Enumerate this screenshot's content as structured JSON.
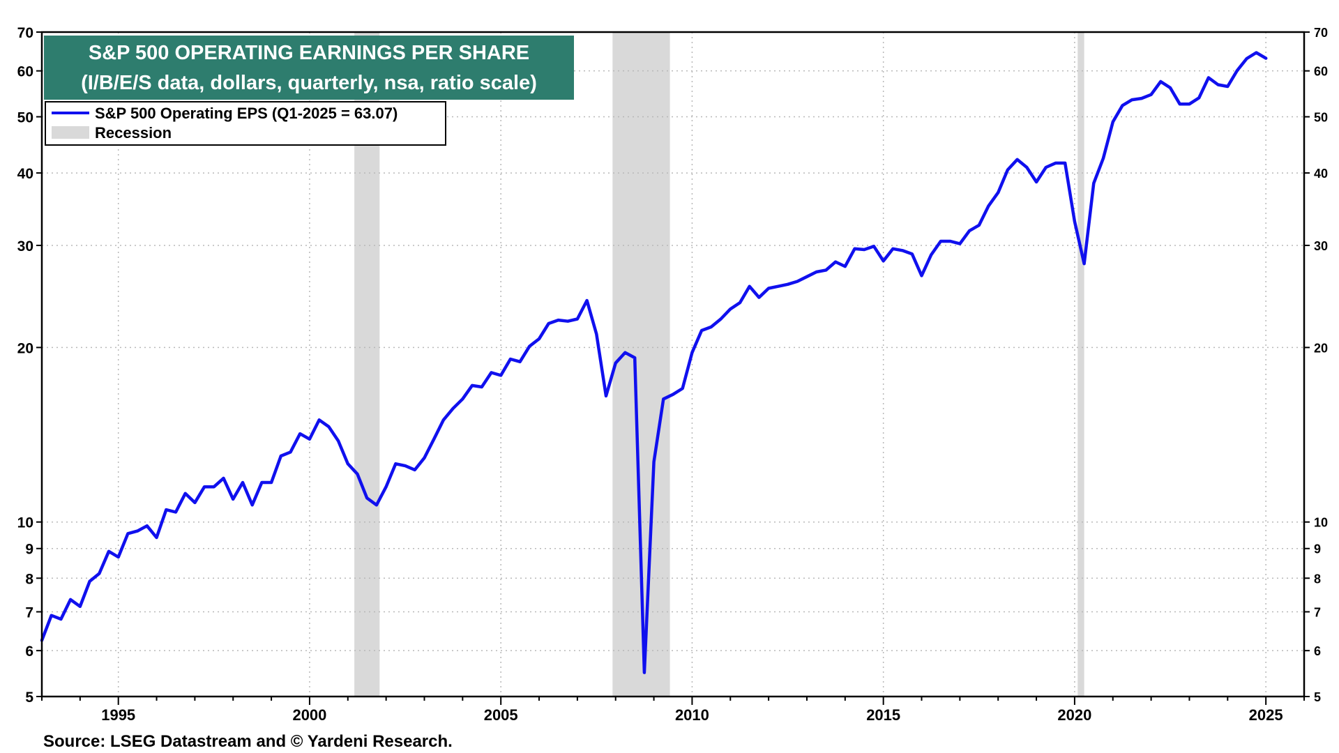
{
  "chart_data": {
    "type": "line",
    "title": "S&P 500 OPERATING EARNINGS PER SHARE",
    "subtitle": "(I/B/E/S data, dollars, quarterly, nsa, ratio scale)",
    "source": "Source: LSEG Datastream and © Yardeni Research.",
    "xlim": [
      1993.0,
      2026.0
    ],
    "ylim": [
      5,
      70
    ],
    "y_scale": "log",
    "grid": true,
    "legend_placement": "top-left",
    "x_ticks": [
      1995,
      2000,
      2005,
      2010,
      2015,
      2020,
      2025
    ],
    "y_ticks": [
      5,
      6,
      7,
      8,
      9,
      10,
      20,
      30,
      40,
      50,
      60,
      70
    ],
    "recessions": [
      {
        "start": 2001.17,
        "end": 2001.83
      },
      {
        "start": 2007.92,
        "end": 2009.42
      },
      {
        "start": 2020.08,
        "end": 2020.25
      }
    ],
    "series": [
      {
        "name": "S&P 500 Operating EPS (Q1-2025 = 63.07)",
        "color": "#1010ee",
        "x": [
          1993.0,
          1993.25,
          1993.5,
          1993.75,
          1994.0,
          1994.25,
          1994.5,
          1994.75,
          1995.0,
          1995.25,
          1995.5,
          1995.75,
          1996.0,
          1996.25,
          1996.5,
          1996.75,
          1997.0,
          1997.25,
          1997.5,
          1997.75,
          1998.0,
          1998.25,
          1998.5,
          1998.75,
          1999.0,
          1999.25,
          1999.5,
          1999.75,
          2000.0,
          2000.25,
          2000.5,
          2000.75,
          2001.0,
          2001.25,
          2001.5,
          2001.75,
          2002.0,
          2002.25,
          2002.5,
          2002.75,
          2003.0,
          2003.25,
          2003.5,
          2003.75,
          2004.0,
          2004.25,
          2004.5,
          2004.75,
          2005.0,
          2005.25,
          2005.5,
          2005.75,
          2006.0,
          2006.25,
          2006.5,
          2006.75,
          2007.0,
          2007.25,
          2007.5,
          2007.75,
          2008.0,
          2008.25,
          2008.5,
          2008.75,
          2009.0,
          2009.25,
          2009.5,
          2009.75,
          2010.0,
          2010.25,
          2010.5,
          2010.75,
          2011.0,
          2011.25,
          2011.5,
          2011.75,
          2012.0,
          2012.25,
          2012.5,
          2012.75,
          2013.0,
          2013.25,
          2013.5,
          2013.75,
          2014.0,
          2014.25,
          2014.5,
          2014.75,
          2015.0,
          2015.25,
          2015.5,
          2015.75,
          2016.0,
          2016.25,
          2016.5,
          2016.75,
          2017.0,
          2017.25,
          2017.5,
          2017.75,
          2018.0,
          2018.25,
          2018.5,
          2018.75,
          2019.0,
          2019.25,
          2019.5,
          2019.75,
          2020.0,
          2020.25,
          2020.5,
          2020.75,
          2021.0,
          2021.25,
          2021.5,
          2021.75,
          2022.0,
          2022.25,
          2022.5,
          2022.75,
          2023.0,
          2023.25,
          2023.5,
          2023.75,
          2024.0,
          2024.25,
          2024.5,
          2024.75,
          2025.0
        ],
        "values": [
          6.25,
          6.9,
          6.8,
          7.35,
          7.15,
          7.9,
          8.15,
          8.9,
          8.7,
          9.55,
          9.65,
          9.85,
          9.4,
          10.5,
          10.4,
          11.2,
          10.8,
          11.5,
          11.5,
          11.9,
          10.95,
          11.7,
          10.7,
          11.7,
          11.7,
          13.0,
          13.2,
          14.2,
          13.9,
          15.0,
          14.6,
          13.8,
          12.6,
          12.1,
          11.0,
          10.7,
          11.5,
          12.6,
          12.5,
          12.3,
          12.9,
          13.9,
          15.0,
          15.7,
          16.3,
          17.2,
          17.1,
          18.1,
          17.9,
          19.1,
          18.9,
          20.1,
          20.7,
          22.0,
          22.3,
          22.2,
          22.4,
          24.1,
          21.1,
          16.5,
          18.8,
          19.6,
          19.2,
          5.5,
          12.7,
          16.3,
          16.6,
          17.0,
          19.6,
          21.4,
          21.7,
          22.4,
          23.3,
          23.9,
          25.5,
          24.4,
          25.3,
          25.5,
          25.7,
          26.0,
          26.5,
          27.0,
          27.2,
          28.1,
          27.6,
          29.6,
          29.5,
          29.9,
          28.2,
          29.6,
          29.4,
          29.0,
          26.6,
          28.9,
          30.5,
          30.5,
          30.2,
          31.8,
          32.5,
          35.1,
          37.0,
          40.5,
          42.2,
          40.9,
          38.6,
          40.9,
          41.6,
          41.6,
          33.0,
          27.9,
          38.4,
          42.4,
          49.0,
          52.3,
          53.5,
          53.8,
          54.6,
          57.5,
          56.1,
          52.6,
          52.6,
          53.9,
          58.4,
          56.8,
          56.4,
          60.1,
          63.0,
          64.5,
          63.07
        ]
      }
    ]
  },
  "legend": {
    "series_label": "S&P 500 Operating EPS (Q1-2025 = 63.07)",
    "recession_label": "Recession"
  },
  "colors": {
    "title_bg": "#2e7d6e",
    "title_text": "#ffffff",
    "line": "#1010ee",
    "recession": "#d9d9d9",
    "grid": "#b8b8b8"
  }
}
